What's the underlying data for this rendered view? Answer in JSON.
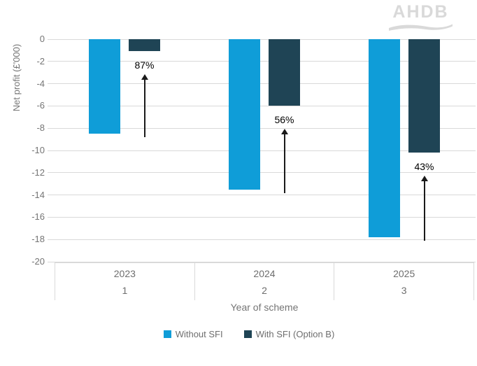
{
  "logo": {
    "text": "AHDB"
  },
  "colors": {
    "without_sfi": "#0f9dd8",
    "with_sfi": "#1f4455",
    "gridline": "#d9d9d9",
    "axis_text": "#757575",
    "category_text": "#6e6e6e",
    "annotation_text": "#000000",
    "arrow": "#1a1a1a",
    "logo_gray": "#d9d9d9"
  },
  "chart_data": {
    "type": "bar",
    "title": "",
    "ylabel": "Net profit (£'000)",
    "xlabel": "Year of scheme",
    "ylim": [
      -20,
      0
    ],
    "yticks": [
      0,
      -2,
      -4,
      -6,
      -8,
      -10,
      -12,
      -14,
      -16,
      -18,
      -20
    ],
    "grid": true,
    "legend_position": "bottom",
    "categories": [
      {
        "year": "2023",
        "scheme_year": "1"
      },
      {
        "year": "2024",
        "scheme_year": "2"
      },
      {
        "year": "2025",
        "scheme_year": "3"
      }
    ],
    "series": [
      {
        "name": "Without SFI",
        "color": "#0f9dd8",
        "values": [
          -8.5,
          -13.5,
          -17.8
        ]
      },
      {
        "name": "With SFI (Option B)",
        "color": "#1f4455",
        "values": [
          -1.1,
          -6.0,
          -10.2
        ]
      }
    ],
    "annotations": [
      {
        "label": "87%"
      },
      {
        "label": "56%"
      },
      {
        "label": "43%"
      }
    ]
  }
}
